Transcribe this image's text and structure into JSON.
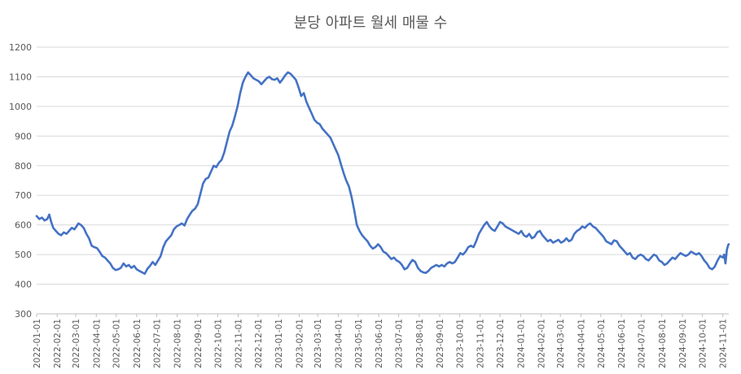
{
  "chart_data": {
    "type": "line",
    "title": "분당 아파트 월세 매물 수",
    "xlabel": "",
    "ylabel": "",
    "ylim": [
      300,
      1200
    ],
    "yticks": [
      300,
      400,
      500,
      600,
      700,
      800,
      900,
      1000,
      1100,
      1200
    ],
    "xlim": [
      "2022-01-01",
      "2024-11-10"
    ],
    "xticks": [
      "2022-01-01",
      "2022-02-01",
      "2022-03-01",
      "2022-04-01",
      "2022-05-01",
      "2022-06-01",
      "2022-07-01",
      "2022-08-01",
      "2022-09-01",
      "2022-10-01",
      "2022-11-01",
      "2022-12-01",
      "2023-01-01",
      "2023-02-01",
      "2023-03-01",
      "2023-04-01",
      "2023-05-01",
      "2023-06-01",
      "2023-07-01",
      "2023-08-01",
      "2023-09-01",
      "2023-10-01",
      "2023-11-01",
      "2023-12-01",
      "2024-01-01",
      "2024-02-01",
      "2024-03-01",
      "2024-04-01",
      "2024-05-01",
      "2024-06-01",
      "2024-07-01",
      "2024-08-01",
      "2024-09-01",
      "2024-10-01",
      "2024-11-01"
    ],
    "grid": true,
    "legend": "none",
    "series_color": "#4472C4",
    "series": [
      {
        "points": [
          [
            "2022-01-01",
            630
          ],
          [
            "2022-01-05",
            620
          ],
          [
            "2022-01-09",
            625
          ],
          [
            "2022-01-13",
            615
          ],
          [
            "2022-01-17",
            620
          ],
          [
            "2022-01-20",
            635
          ],
          [
            "2022-01-23",
            610
          ],
          [
            "2022-01-26",
            590
          ],
          [
            "2022-01-30",
            580
          ],
          [
            "2022-02-03",
            570
          ],
          [
            "2022-02-07",
            565
          ],
          [
            "2022-02-11",
            575
          ],
          [
            "2022-02-15",
            570
          ],
          [
            "2022-02-19",
            580
          ],
          [
            "2022-02-23",
            590
          ],
          [
            "2022-02-27",
            585
          ],
          [
            "2022-03-02",
            595
          ],
          [
            "2022-03-05",
            605
          ],
          [
            "2022-03-09",
            600
          ],
          [
            "2022-03-13",
            590
          ],
          [
            "2022-03-17",
            570
          ],
          [
            "2022-03-21",
            555
          ],
          [
            "2022-03-25",
            530
          ],
          [
            "2022-03-29",
            525
          ],
          [
            "2022-04-02",
            522
          ],
          [
            "2022-04-06",
            510
          ],
          [
            "2022-04-10",
            495
          ],
          [
            "2022-04-14",
            490
          ],
          [
            "2022-04-18",
            480
          ],
          [
            "2022-04-22",
            470
          ],
          [
            "2022-04-26",
            455
          ],
          [
            "2022-04-30",
            448
          ],
          [
            "2022-05-04",
            450
          ],
          [
            "2022-05-08",
            455
          ],
          [
            "2022-05-12",
            470
          ],
          [
            "2022-05-16",
            460
          ],
          [
            "2022-05-20",
            465
          ],
          [
            "2022-05-24",
            455
          ],
          [
            "2022-05-28",
            462
          ],
          [
            "2022-06-01",
            450
          ],
          [
            "2022-06-05",
            445
          ],
          [
            "2022-06-09",
            440
          ],
          [
            "2022-06-13",
            435
          ],
          [
            "2022-06-17",
            452
          ],
          [
            "2022-06-21",
            462
          ],
          [
            "2022-06-25",
            475
          ],
          [
            "2022-06-29",
            465
          ],
          [
            "2022-07-03",
            480
          ],
          [
            "2022-07-07",
            495
          ],
          [
            "2022-07-11",
            525
          ],
          [
            "2022-07-15",
            545
          ],
          [
            "2022-07-19",
            555
          ],
          [
            "2022-07-23",
            565
          ],
          [
            "2022-07-27",
            585
          ],
          [
            "2022-07-31",
            595
          ],
          [
            "2022-08-04",
            600
          ],
          [
            "2022-08-08",
            605
          ],
          [
            "2022-08-12",
            598
          ],
          [
            "2022-08-16",
            620
          ],
          [
            "2022-08-20",
            635
          ],
          [
            "2022-08-24",
            648
          ],
          [
            "2022-08-28",
            655
          ],
          [
            "2022-09-01",
            670
          ],
          [
            "2022-09-05",
            705
          ],
          [
            "2022-09-09",
            740
          ],
          [
            "2022-09-13",
            755
          ],
          [
            "2022-09-17",
            760
          ],
          [
            "2022-09-21",
            780
          ],
          [
            "2022-09-25",
            800
          ],
          [
            "2022-09-29",
            795
          ],
          [
            "2022-10-03",
            810
          ],
          [
            "2022-10-07",
            820
          ],
          [
            "2022-10-11",
            845
          ],
          [
            "2022-10-15",
            880
          ],
          [
            "2022-10-19",
            915
          ],
          [
            "2022-10-23",
            935
          ],
          [
            "2022-10-27",
            965
          ],
          [
            "2022-10-31",
            1000
          ],
          [
            "2022-11-04",
            1045
          ],
          [
            "2022-11-08",
            1080
          ],
          [
            "2022-11-12",
            1100
          ],
          [
            "2022-11-16",
            1115
          ],
          [
            "2022-11-20",
            1105
          ],
          [
            "2022-11-24",
            1095
          ],
          [
            "2022-11-28",
            1090
          ],
          [
            "2022-12-02",
            1085
          ],
          [
            "2022-12-06",
            1075
          ],
          [
            "2022-12-10",
            1085
          ],
          [
            "2022-12-14",
            1095
          ],
          [
            "2022-12-18",
            1100
          ],
          [
            "2022-12-22",
            1092
          ],
          [
            "2022-12-26",
            1090
          ],
          [
            "2022-12-30",
            1095
          ],
          [
            "2023-01-03",
            1080
          ],
          [
            "2023-01-07",
            1092
          ],
          [
            "2023-01-11",
            1105
          ],
          [
            "2023-01-15",
            1115
          ],
          [
            "2023-01-19",
            1110
          ],
          [
            "2023-01-23",
            1100
          ],
          [
            "2023-01-27",
            1090
          ],
          [
            "2023-01-31",
            1065
          ],
          [
            "2023-02-04",
            1035
          ],
          [
            "2023-02-08",
            1045
          ],
          [
            "2023-02-12",
            1015
          ],
          [
            "2023-02-16",
            995
          ],
          [
            "2023-02-20",
            975
          ],
          [
            "2023-02-24",
            955
          ],
          [
            "2023-02-28",
            945
          ],
          [
            "2023-03-04",
            940
          ],
          [
            "2023-03-08",
            925
          ],
          [
            "2023-03-12",
            915
          ],
          [
            "2023-03-16",
            905
          ],
          [
            "2023-03-20",
            895
          ],
          [
            "2023-03-24",
            875
          ],
          [
            "2023-03-28",
            855
          ],
          [
            "2023-04-01",
            835
          ],
          [
            "2023-04-05",
            805
          ],
          [
            "2023-04-09",
            775
          ],
          [
            "2023-04-13",
            750
          ],
          [
            "2023-04-17",
            730
          ],
          [
            "2023-04-21",
            695
          ],
          [
            "2023-04-25",
            650
          ],
          [
            "2023-04-29",
            600
          ],
          [
            "2023-05-03",
            580
          ],
          [
            "2023-05-07",
            565
          ],
          [
            "2023-05-11",
            555
          ],
          [
            "2023-05-15",
            545
          ],
          [
            "2023-05-19",
            530
          ],
          [
            "2023-05-23",
            520
          ],
          [
            "2023-05-27",
            525
          ],
          [
            "2023-05-31",
            535
          ],
          [
            "2023-06-04",
            525
          ],
          [
            "2023-06-08",
            510
          ],
          [
            "2023-06-12",
            505
          ],
          [
            "2023-06-16",
            495
          ],
          [
            "2023-06-20",
            485
          ],
          [
            "2023-06-24",
            490
          ],
          [
            "2023-06-28",
            480
          ],
          [
            "2023-07-02",
            475
          ],
          [
            "2023-07-06",
            465
          ],
          [
            "2023-07-10",
            450
          ],
          [
            "2023-07-14",
            455
          ],
          [
            "2023-07-18",
            470
          ],
          [
            "2023-07-22",
            482
          ],
          [
            "2023-07-26",
            475
          ],
          [
            "2023-07-30",
            455
          ],
          [
            "2023-08-03",
            445
          ],
          [
            "2023-08-07",
            440
          ],
          [
            "2023-08-11",
            438
          ],
          [
            "2023-08-15",
            445
          ],
          [
            "2023-08-19",
            455
          ],
          [
            "2023-08-23",
            460
          ],
          [
            "2023-08-27",
            465
          ],
          [
            "2023-08-31",
            460
          ],
          [
            "2023-09-04",
            465
          ],
          [
            "2023-09-08",
            460
          ],
          [
            "2023-09-12",
            470
          ],
          [
            "2023-09-16",
            475
          ],
          [
            "2023-09-20",
            470
          ],
          [
            "2023-09-24",
            475
          ],
          [
            "2023-09-28",
            490
          ],
          [
            "2023-10-02",
            505
          ],
          [
            "2023-10-06",
            500
          ],
          [
            "2023-10-10",
            510
          ],
          [
            "2023-10-14",
            525
          ],
          [
            "2023-10-18",
            530
          ],
          [
            "2023-10-22",
            525
          ],
          [
            "2023-10-26",
            545
          ],
          [
            "2023-10-30",
            570
          ],
          [
            "2023-11-03",
            585
          ],
          [
            "2023-11-07",
            600
          ],
          [
            "2023-11-11",
            610
          ],
          [
            "2023-11-15",
            595
          ],
          [
            "2023-11-19",
            585
          ],
          [
            "2023-11-23",
            580
          ],
          [
            "2023-11-27",
            595
          ],
          [
            "2023-12-01",
            610
          ],
          [
            "2023-12-05",
            605
          ],
          [
            "2023-12-09",
            595
          ],
          [
            "2023-12-13",
            590
          ],
          [
            "2023-12-17",
            585
          ],
          [
            "2023-12-21",
            580
          ],
          [
            "2023-12-25",
            575
          ],
          [
            "2023-12-29",
            570
          ],
          [
            "2024-01-02",
            580
          ],
          [
            "2024-01-06",
            565
          ],
          [
            "2024-01-10",
            560
          ],
          [
            "2024-01-14",
            570
          ],
          [
            "2024-01-18",
            555
          ],
          [
            "2024-01-22",
            560
          ],
          [
            "2024-01-26",
            575
          ],
          [
            "2024-01-30",
            580
          ],
          [
            "2024-02-03",
            565
          ],
          [
            "2024-02-07",
            555
          ],
          [
            "2024-02-11",
            545
          ],
          [
            "2024-02-15",
            550
          ],
          [
            "2024-02-19",
            540
          ],
          [
            "2024-02-23",
            545
          ],
          [
            "2024-02-27",
            550
          ],
          [
            "2024-03-02",
            540
          ],
          [
            "2024-03-06",
            545
          ],
          [
            "2024-03-10",
            555
          ],
          [
            "2024-03-14",
            545
          ],
          [
            "2024-03-18",
            550
          ],
          [
            "2024-03-22",
            570
          ],
          [
            "2024-03-26",
            580
          ],
          [
            "2024-03-30",
            585
          ],
          [
            "2024-04-03",
            595
          ],
          [
            "2024-04-07",
            590
          ],
          [
            "2024-04-11",
            600
          ],
          [
            "2024-04-15",
            605
          ],
          [
            "2024-04-19",
            595
          ],
          [
            "2024-04-23",
            590
          ],
          [
            "2024-04-27",
            580
          ],
          [
            "2024-05-01",
            570
          ],
          [
            "2024-05-05",
            560
          ],
          [
            "2024-05-09",
            545
          ],
          [
            "2024-05-13",
            540
          ],
          [
            "2024-05-17",
            535
          ],
          [
            "2024-05-21",
            548
          ],
          [
            "2024-05-25",
            545
          ],
          [
            "2024-05-29",
            530
          ],
          [
            "2024-06-02",
            520
          ],
          [
            "2024-06-06",
            510
          ],
          [
            "2024-06-10",
            500
          ],
          [
            "2024-06-14",
            505
          ],
          [
            "2024-06-18",
            490
          ],
          [
            "2024-06-22",
            485
          ],
          [
            "2024-06-26",
            495
          ],
          [
            "2024-06-30",
            500
          ],
          [
            "2024-07-04",
            495
          ],
          [
            "2024-07-08",
            485
          ],
          [
            "2024-07-12",
            480
          ],
          [
            "2024-07-16",
            490
          ],
          [
            "2024-07-20",
            500
          ],
          [
            "2024-07-24",
            495
          ],
          [
            "2024-07-28",
            480
          ],
          [
            "2024-08-01",
            475
          ],
          [
            "2024-08-05",
            465
          ],
          [
            "2024-08-09",
            470
          ],
          [
            "2024-08-13",
            480
          ],
          [
            "2024-08-17",
            490
          ],
          [
            "2024-08-21",
            485
          ],
          [
            "2024-08-25",
            495
          ],
          [
            "2024-08-29",
            505
          ],
          [
            "2024-09-02",
            500
          ],
          [
            "2024-09-06",
            495
          ],
          [
            "2024-09-10",
            500
          ],
          [
            "2024-09-14",
            510
          ],
          [
            "2024-09-18",
            505
          ],
          [
            "2024-09-22",
            500
          ],
          [
            "2024-09-26",
            505
          ],
          [
            "2024-09-30",
            495
          ],
          [
            "2024-10-04",
            480
          ],
          [
            "2024-10-08",
            470
          ],
          [
            "2024-10-12",
            455
          ],
          [
            "2024-10-16",
            450
          ],
          [
            "2024-10-20",
            460
          ],
          [
            "2024-10-24",
            480
          ],
          [
            "2024-10-28",
            495
          ],
          [
            "2024-11-01",
            490
          ],
          [
            "2024-11-03",
            500
          ],
          [
            "2024-11-05",
            470
          ],
          [
            "2024-11-07",
            515
          ],
          [
            "2024-11-09",
            532
          ],
          [
            "2024-11-10",
            535
          ]
        ]
      }
    ]
  }
}
